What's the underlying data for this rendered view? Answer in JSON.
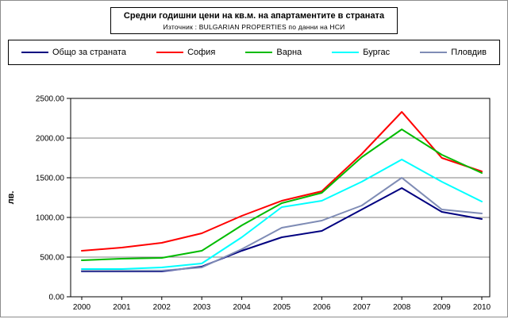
{
  "header": {
    "title": "Средни годишни цени на кв.м. на апартаментите в страната",
    "subtitle": "Източник : BULGARIAN PROPERTIES по данни на НСИ"
  },
  "chart_data": {
    "type": "line",
    "title": "Средни годишни цени на кв.м. на апартаментите в страната",
    "subtitle": "Източник : BULGARIAN PROPERTIES по данни на НСИ",
    "xlabel": "",
    "ylabel": "лв.",
    "ylim": [
      0,
      2500
    ],
    "ytick_interval": 500,
    "ytick_labels": [
      "0.00",
      "500.00",
      "1000.00",
      "1500.00",
      "2000.00",
      "2500.00"
    ],
    "grid": "horizontal",
    "legend_position": "top",
    "categories": [
      "2000",
      "2001",
      "2002",
      "2003",
      "2004",
      "2005",
      "2006",
      "2007",
      "2008",
      "2009",
      "2010"
    ],
    "series": [
      {
        "name": "Общо за страната",
        "color": "#000080",
        "values": [
          320,
          320,
          320,
          380,
          580,
          750,
          830,
          1100,
          1370,
          1070,
          980
        ]
      },
      {
        "name": "София",
        "color": "#FF0000",
        "values": [
          580,
          620,
          680,
          800,
          1020,
          1210,
          1330,
          1800,
          2330,
          1750,
          1580
        ]
      },
      {
        "name": "Варна",
        "color": "#00BB00",
        "values": [
          460,
          480,
          490,
          580,
          900,
          1180,
          1310,
          1760,
          2110,
          1790,
          1560
        ]
      },
      {
        "name": "Бургас",
        "color": "#00FFFF",
        "values": [
          350,
          350,
          370,
          420,
          750,
          1130,
          1210,
          1450,
          1730,
          1450,
          1200
        ]
      },
      {
        "name": "Пловдив",
        "color": "#7F8CB5",
        "values": [
          330,
          330,
          330,
          370,
          600,
          870,
          960,
          1150,
          1500,
          1100,
          1050
        ]
      }
    ],
    "axis_color": "#000000",
    "gridline_color": "#808080"
  }
}
